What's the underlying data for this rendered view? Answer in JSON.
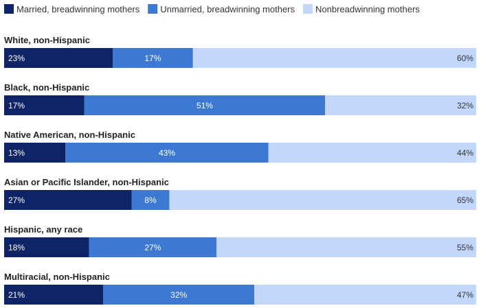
{
  "chart_data": {
    "type": "bar",
    "orientation": "horizontal",
    "stacked": true,
    "percent_scale": [
      0,
      100
    ],
    "grid": false,
    "legend_position": "top-left",
    "title": "",
    "xlabel": "",
    "ylabel": "",
    "categories": [
      "White, non-Hispanic",
      "Black, non-Hispanic",
      "Native American, non-Hispanic",
      "Asian or Pacific Islander, non-Hispanic",
      "Hispanic, any race",
      "Multiracial, non-Hispanic"
    ],
    "series": [
      {
        "name": "Married, breadwinning mothers",
        "color": "#0f2466",
        "label_color": "#ffffff",
        "values": [
          23,
          17,
          13,
          27,
          18,
          21
        ]
      },
      {
        "name": "Unmarried, breadwinning mothers",
        "color": "#3d78d3",
        "label_color": "#ffffff",
        "values": [
          17,
          51,
          43,
          8,
          27,
          32
        ]
      },
      {
        "name": "Nonbreadwinning mothers",
        "color": "#c2d7fb",
        "label_color": "#333333",
        "values": [
          60,
          32,
          44,
          65,
          55,
          47
        ]
      }
    ],
    "value_suffix": "%"
  }
}
